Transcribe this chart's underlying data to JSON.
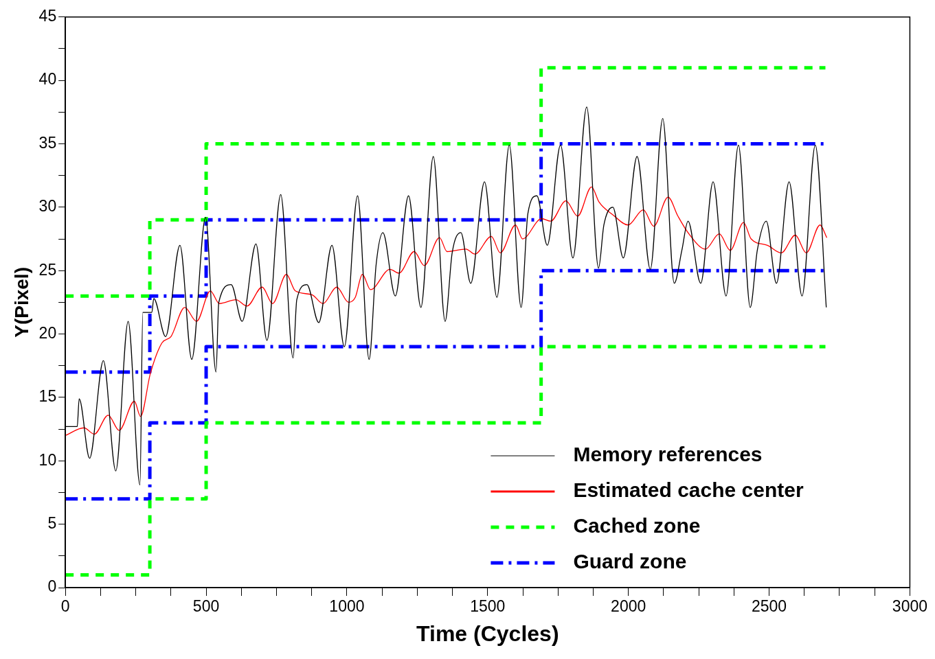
{
  "chart_data": {
    "type": "line",
    "xlabel": "Time (Cycles)",
    "ylabel": "Y(Pixel)",
    "xlim": [
      0,
      3000
    ],
    "xticks": [
      0,
      {
        "value": 125,
        "label": null
      },
      {
        "value": 250,
        "label": null
      },
      {
        "value": 375,
        "label": null
      },
      500,
      {
        "value": 625,
        "label": null
      },
      {
        "value": 750,
        "label": null
      },
      {
        "value": 875,
        "label": null
      },
      1000,
      {
        "value": 1125,
        "label": null
      },
      {
        "value": 1250,
        "label": null
      },
      {
        "value": 1375,
        "label": null
      },
      1500,
      {
        "value": 1625,
        "label": null
      },
      {
        "value": 1750,
        "label": null
      },
      {
        "value": 1875,
        "label": null
      },
      2000,
      {
        "value": 2125,
        "label": null
      },
      {
        "value": 2250,
        "label": null
      },
      {
        "value": 2375,
        "label": null
      },
      2500,
      {
        "value": 2625,
        "label": null
      },
      {
        "value": 2750,
        "label": null
      },
      {
        "value": 2875,
        "label": null
      },
      3000
    ],
    "ylim": [
      0,
      45
    ],
    "yticks": [
      0,
      {
        "value": 2.5,
        "label": null
      },
      5,
      {
        "value": 7.5,
        "label": null
      },
      10,
      {
        "value": 12.5,
        "label": null
      },
      15,
      {
        "value": 17.5,
        "label": null
      },
      20,
      {
        "value": 22.5,
        "label": null
      },
      25,
      {
        "value": 27.5,
        "label": null
      },
      30,
      {
        "value": 32.5,
        "label": null
      },
      35,
      {
        "value": 37.5,
        "label": null
      },
      40,
      {
        "value": 42.5,
        "label": null
      },
      45
    ],
    "grid": false,
    "legend": "bottom right",
    "marker": "none",
    "series": [
      {
        "name": "Memory references",
        "color": "#000000",
        "line_style": "solid",
        "x": [
          0,
          42,
          49,
          86,
          135,
          179,
          223,
          265,
          275,
          307,
          314,
          356,
          407,
          449,
          498,
          535,
          545,
          589,
          628,
          677,
          716,
          765,
          809,
          822,
          858,
          900,
          947,
          991,
          1038,
          1079,
          1104,
          1128,
          1172,
          1219,
          1263,
          1307,
          1349,
          1374,
          1405,
          1440,
          1489,
          1533,
          1577,
          1619,
          1643,
          1675,
          1712,
          1759,
          1803,
          1852,
          1894,
          1913,
          1945,
          1982,
          2031,
          2078,
          2122,
          2163,
          2190,
          2212,
          2257,
          2301,
          2347,
          2391,
          2433,
          2458,
          2490,
          2526,
          2571,
          2617,
          2664,
          2703
        ],
        "values": [
          12.7,
          12.7,
          14.9,
          10.2,
          17.9,
          9.2,
          21,
          8.1,
          21.7,
          21.7,
          22.8,
          19.8,
          27,
          18,
          29.2,
          17,
          22.5,
          23.9,
          21,
          27.1,
          19.5,
          31,
          18.1,
          22.7,
          23.9,
          20.9,
          27,
          19,
          30.9,
          18,
          25.5,
          28,
          23,
          30.9,
          22.1,
          34,
          21,
          26.4,
          28,
          24,
          32,
          22.9,
          34.9,
          22.1,
          29.5,
          30.9,
          27,
          34.9,
          26,
          37.9,
          25.2,
          28.6,
          30,
          26,
          34,
          25.1,
          37,
          24,
          26.6,
          28.9,
          24,
          32,
          23,
          34.9,
          22.1,
          26.6,
          28.9,
          24,
          32,
          23,
          34.9,
          22.1
        ]
      },
      {
        "name": "Estimated cache center",
        "color": "#ff0000",
        "line_style": "solid",
        "x": [
          0,
          66,
          103,
          152,
          191,
          245,
          267,
          302,
          343,
          375,
          424,
          466,
          515,
          547,
          606,
          645,
          699,
          736,
          785,
          817,
          876,
          915,
          964,
          1006,
          1030,
          1055,
          1084,
          1153,
          1185,
          1239,
          1275,
          1329,
          1356,
          1423,
          1455,
          1513,
          1545,
          1599,
          1624,
          1692,
          1724,
          1778,
          1820,
          1869,
          1896,
          1945,
          1999,
          2053,
          2090,
          2141,
          2176,
          2215,
          2274,
          2323,
          2362,
          2409,
          2436,
          2494,
          2543,
          2593,
          2632,
          2681,
          2705
        ],
        "values": [
          12,
          12.6,
          12.1,
          13.6,
          12.4,
          14.7,
          13.5,
          16.9,
          19.3,
          19.8,
          22.1,
          21,
          23.4,
          22.4,
          22.7,
          22.2,
          23.7,
          22.4,
          24.7,
          23.4,
          23.1,
          22.4,
          23.7,
          22.5,
          22.9,
          24.7,
          23.5,
          25.1,
          24.8,
          26.5,
          25.4,
          27.6,
          26.5,
          26.7,
          26.3,
          27.7,
          26.4,
          28.6,
          27.5,
          29.1,
          28.9,
          30.5,
          29.3,
          31.6,
          30.4,
          29.4,
          28.6,
          29.8,
          28.5,
          30.8,
          29.3,
          27.9,
          26.7,
          27.9,
          26.6,
          28.8,
          27.5,
          27,
          26.4,
          27.8,
          26.4,
          28.6,
          27.6
        ]
      },
      {
        "name": "Cached zone",
        "type": "step",
        "color": "#00ff00",
        "line_style": "dashed",
        "x": [
          0,
          300,
          500,
          1690,
          2700
        ],
        "values": [
          23,
          29,
          35,
          41,
          41
        ]
      },
      {
        "type": "step",
        "color": "#00ff00",
        "line_style": "dashed",
        "x": [
          0,
          300,
          500,
          1690,
          2700
        ],
        "values": [
          1,
          7,
          13,
          19,
          19
        ]
      },
      {
        "name": "Guard zone",
        "type": "step",
        "color": "#0000ff",
        "line_style": "dashdot",
        "x": [
          0,
          300,
          500,
          1690,
          2700
        ],
        "values": [
          17,
          23,
          29,
          35,
          35
        ]
      },
      {
        "type": "step",
        "color": "#0000ff",
        "line_style": "dashdot",
        "x": [
          0,
          300,
          500,
          1690,
          2700
        ],
        "values": [
          7,
          13,
          19,
          25,
          25
        ]
      }
    ]
  }
}
